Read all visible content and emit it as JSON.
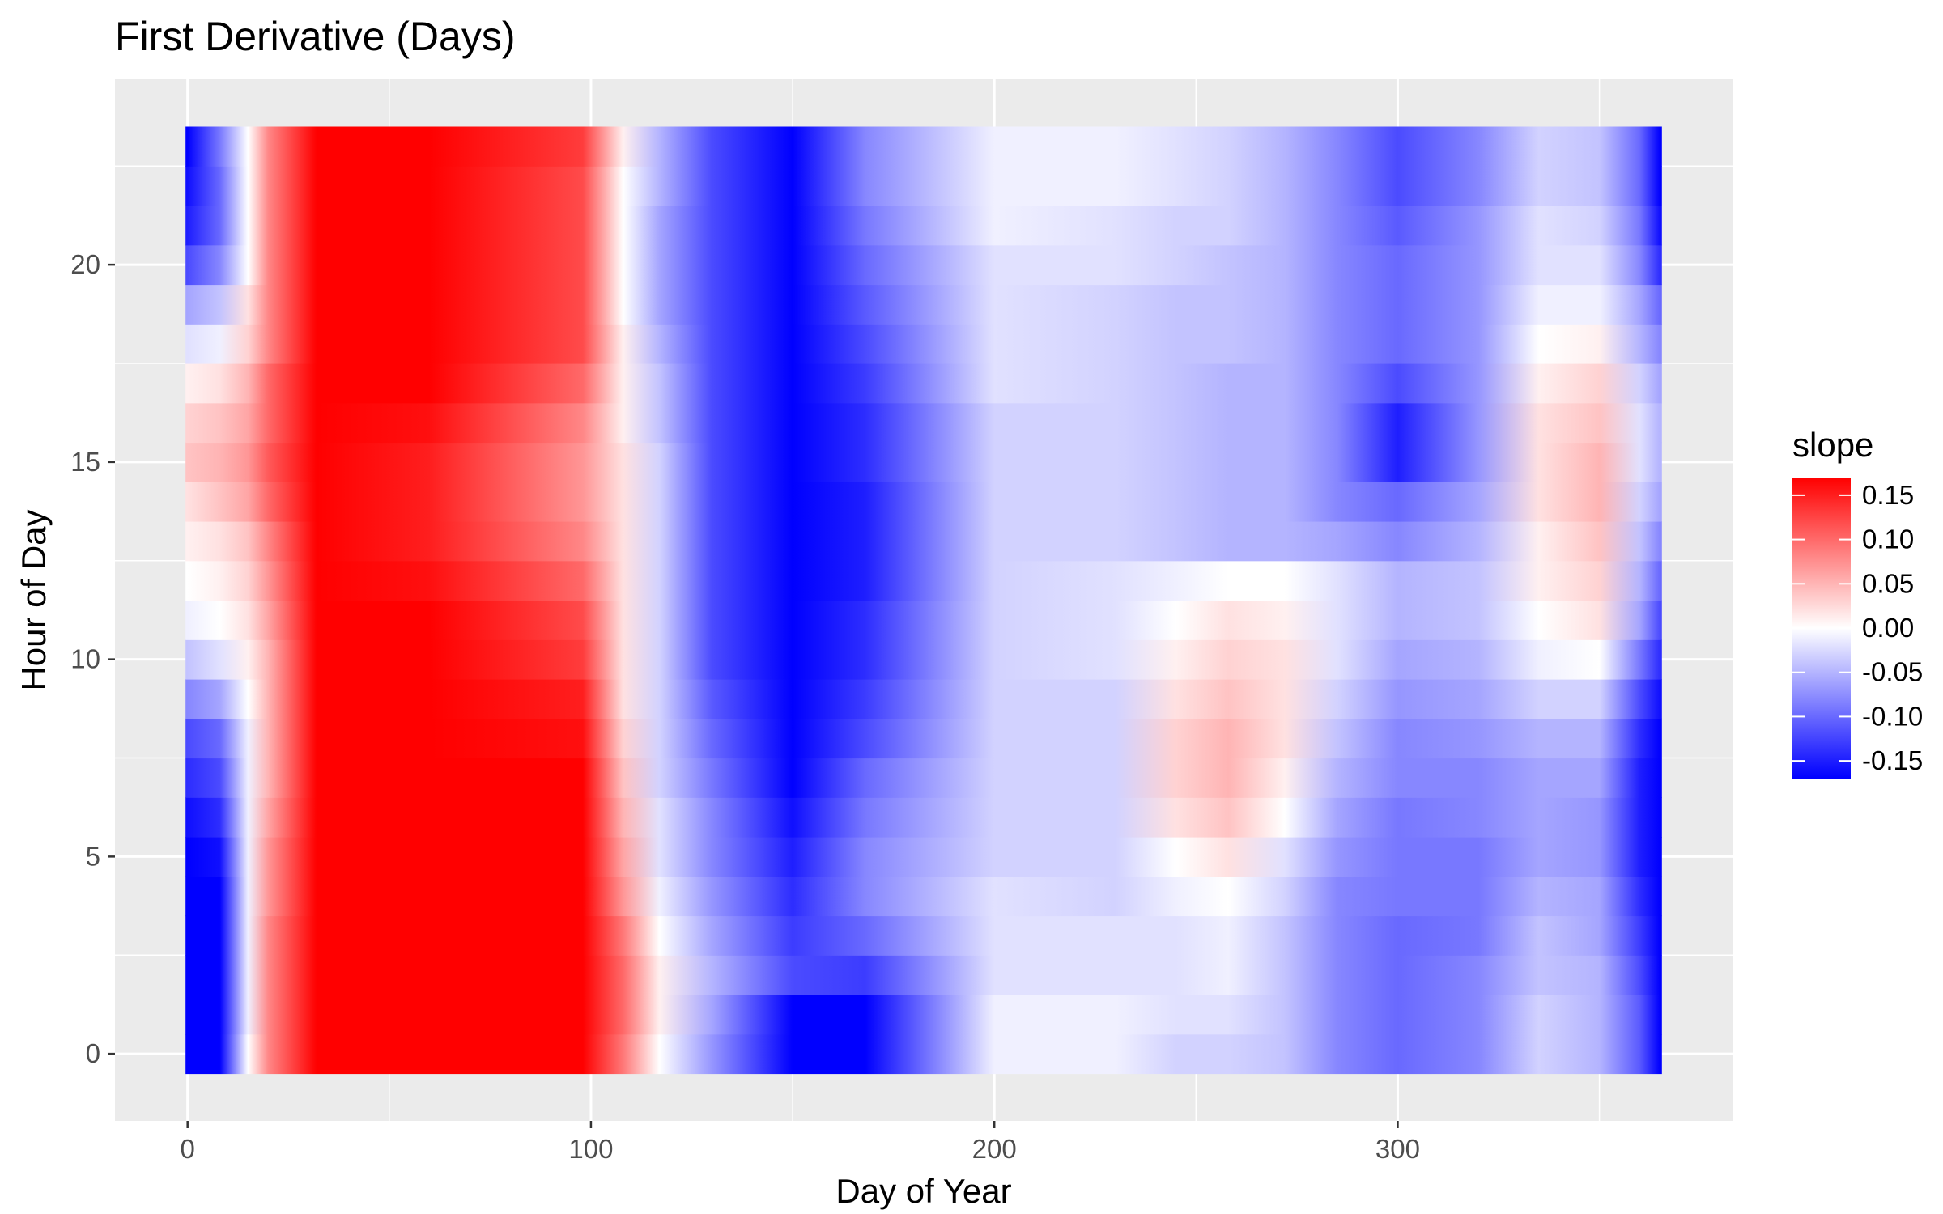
{
  "chart_data": {
    "type": "heatmap",
    "title": "First Derivative (Days)",
    "xlabel": "Day of Year",
    "ylabel": "Hour of Day",
    "xlim": [
      -0.5,
      365.5
    ],
    "ylim": [
      -0.5,
      23.5
    ],
    "x_view": [
      -18,
      383
    ],
    "y_view": [
      -1.7,
      24.7
    ],
    "x_ticks": [
      0,
      100,
      200,
      300
    ],
    "x_tick_labels": [
      "0",
      "100",
      "200",
      "300"
    ],
    "y_ticks": [
      0,
      5,
      10,
      15,
      20
    ],
    "y_tick_labels": [
      "0",
      "5",
      "10",
      "15",
      "20"
    ],
    "grid": true,
    "panel_background": "#ebebeb",
    "legend": {
      "title": "slope",
      "placement": "right",
      "limits": [
        -0.17,
        0.17
      ],
      "breaks": [
        0.15,
        0.1,
        0.05,
        0.0,
        -0.05,
        -0.1,
        -0.15
      ],
      "break_labels": [
        "0.15",
        "0.10",
        "0.05",
        "0.00",
        "-0.05",
        "-0.10",
        "-0.15"
      ]
    },
    "colors": {
      "low": "#0000ff",
      "mid": "#ffffff",
      "high": "#ff0000"
    },
    "day_knots": [
      0,
      8,
      15,
      20,
      32,
      60,
      98,
      108,
      117,
      130,
      150,
      168,
      200,
      230,
      245,
      258,
      272,
      285,
      300,
      320,
      335,
      350,
      360,
      365
    ],
    "hour_slope_profiles": [
      {
        "hour": 0,
        "slopes": [
          -0.17,
          -0.17,
          0.0,
          0.08,
          0.17,
          0.17,
          0.17,
          0.09,
          0.0,
          -0.07,
          -0.17,
          -0.17,
          -0.01,
          -0.01,
          -0.03,
          -0.03,
          -0.04,
          -0.08,
          -0.1,
          -0.08,
          -0.03,
          -0.05,
          -0.11,
          -0.17
        ]
      },
      {
        "hour": 1,
        "slopes": [
          -0.17,
          -0.17,
          -0.01,
          0.08,
          0.17,
          0.17,
          0.17,
          0.1,
          0.01,
          -0.06,
          -0.17,
          -0.17,
          -0.01,
          -0.01,
          -0.02,
          -0.02,
          -0.04,
          -0.08,
          -0.1,
          -0.08,
          -0.03,
          -0.05,
          -0.11,
          -0.17
        ]
      },
      {
        "hour": 2,
        "slopes": [
          -0.17,
          -0.17,
          -0.01,
          0.08,
          0.17,
          0.17,
          0.17,
          0.1,
          0.01,
          -0.05,
          -0.12,
          -0.13,
          -0.02,
          -0.02,
          -0.02,
          -0.01,
          -0.04,
          -0.08,
          -0.1,
          -0.08,
          -0.04,
          -0.05,
          -0.12,
          -0.17
        ]
      },
      {
        "hour": 3,
        "slopes": [
          -0.17,
          -0.17,
          -0.01,
          0.08,
          0.17,
          0.17,
          0.17,
          0.09,
          0.0,
          -0.06,
          -0.13,
          -0.1,
          -0.02,
          -0.02,
          -0.02,
          -0.01,
          -0.04,
          -0.08,
          -0.1,
          -0.09,
          -0.04,
          -0.06,
          -0.13,
          -0.17
        ]
      },
      {
        "hour": 4,
        "slopes": [
          -0.17,
          -0.17,
          -0.01,
          0.07,
          0.17,
          0.17,
          0.17,
          0.07,
          -0.01,
          -0.07,
          -0.14,
          -0.08,
          -0.02,
          -0.03,
          -0.01,
          0.0,
          -0.03,
          -0.08,
          -0.09,
          -0.09,
          -0.05,
          -0.06,
          -0.14,
          -0.17
        ]
      },
      {
        "hour": 5,
        "slopes": [
          -0.17,
          -0.16,
          -0.01,
          0.07,
          0.17,
          0.17,
          0.17,
          0.06,
          -0.02,
          -0.08,
          -0.15,
          -0.08,
          -0.03,
          -0.03,
          0.0,
          0.02,
          -0.02,
          -0.07,
          -0.09,
          -0.09,
          -0.06,
          -0.07,
          -0.15,
          -0.17
        ]
      },
      {
        "hour": 6,
        "slopes": [
          -0.16,
          -0.14,
          -0.01,
          0.06,
          0.17,
          0.17,
          0.17,
          0.05,
          -0.02,
          -0.08,
          -0.16,
          -0.09,
          -0.03,
          -0.03,
          0.02,
          0.04,
          0.0,
          -0.06,
          -0.09,
          -0.08,
          -0.06,
          -0.07,
          -0.15,
          -0.17
        ]
      },
      {
        "hour": 7,
        "slopes": [
          -0.14,
          -0.12,
          -0.01,
          0.05,
          0.17,
          0.17,
          0.17,
          0.04,
          -0.03,
          -0.09,
          -0.17,
          -0.1,
          -0.03,
          -0.03,
          0.03,
          0.05,
          0.01,
          -0.05,
          -0.08,
          -0.08,
          -0.06,
          -0.06,
          -0.15,
          -0.17
        ]
      },
      {
        "hour": 8,
        "slopes": [
          -0.12,
          -0.1,
          -0.01,
          0.05,
          0.17,
          0.17,
          0.16,
          0.03,
          -0.03,
          -0.1,
          -0.17,
          -0.12,
          -0.03,
          -0.03,
          0.03,
          0.05,
          0.02,
          -0.04,
          -0.08,
          -0.07,
          -0.05,
          -0.05,
          -0.14,
          -0.17
        ]
      },
      {
        "hour": 9,
        "slopes": [
          -0.08,
          -0.06,
          0.0,
          0.05,
          0.17,
          0.17,
          0.15,
          0.02,
          -0.03,
          -0.11,
          -0.17,
          -0.13,
          -0.03,
          -0.03,
          0.02,
          0.04,
          0.02,
          -0.03,
          -0.07,
          -0.06,
          -0.03,
          -0.03,
          -0.12,
          -0.16
        ]
      },
      {
        "hour": 10,
        "slopes": [
          -0.04,
          -0.02,
          0.01,
          0.05,
          0.17,
          0.17,
          0.13,
          0.02,
          -0.03,
          -0.12,
          -0.17,
          -0.14,
          -0.03,
          -0.02,
          0.01,
          0.03,
          0.02,
          -0.02,
          -0.06,
          -0.05,
          -0.01,
          0.0,
          -0.09,
          -0.14
        ]
      },
      {
        "hour": 11,
        "slopes": [
          -0.01,
          0.0,
          0.02,
          0.06,
          0.17,
          0.17,
          0.12,
          0.02,
          -0.03,
          -0.12,
          -0.17,
          -0.14,
          -0.03,
          -0.02,
          0.0,
          0.02,
          0.01,
          -0.02,
          -0.05,
          -0.04,
          0.0,
          0.02,
          -0.06,
          -0.12
        ]
      },
      {
        "hour": 12,
        "slopes": [
          0.0,
          0.01,
          0.03,
          0.07,
          0.17,
          0.16,
          0.1,
          0.02,
          -0.03,
          -0.12,
          -0.17,
          -0.15,
          -0.03,
          -0.02,
          -0.01,
          0.0,
          0.0,
          -0.02,
          -0.05,
          -0.04,
          0.01,
          0.03,
          -0.05,
          -0.1
        ]
      },
      {
        "hour": 13,
        "slopes": [
          0.01,
          0.02,
          0.04,
          0.08,
          0.17,
          0.15,
          0.08,
          0.02,
          -0.03,
          -0.12,
          -0.17,
          -0.15,
          -0.03,
          -0.03,
          -0.04,
          -0.05,
          -0.05,
          -0.06,
          -0.08,
          -0.05,
          0.01,
          0.04,
          -0.04,
          -0.08
        ]
      },
      {
        "hour": 14,
        "slopes": [
          0.02,
          0.04,
          0.06,
          0.1,
          0.17,
          0.15,
          0.07,
          0.02,
          -0.03,
          -0.12,
          -0.17,
          -0.15,
          -0.03,
          -0.03,
          -0.04,
          -0.05,
          -0.05,
          -0.08,
          -0.1,
          -0.06,
          0.02,
          0.05,
          -0.03,
          -0.06
        ]
      },
      {
        "hour": 15,
        "slopes": [
          0.04,
          0.05,
          0.07,
          0.11,
          0.17,
          0.15,
          0.07,
          0.02,
          -0.03,
          -0.12,
          -0.17,
          -0.14,
          -0.03,
          -0.03,
          -0.04,
          -0.05,
          -0.05,
          -0.08,
          -0.15,
          -0.07,
          0.02,
          0.05,
          -0.02,
          -0.05
        ]
      },
      {
        "hour": 16,
        "slopes": [
          0.03,
          0.04,
          0.06,
          0.1,
          0.17,
          0.16,
          0.08,
          0.01,
          -0.04,
          -0.12,
          -0.17,
          -0.14,
          -0.03,
          -0.03,
          -0.04,
          -0.05,
          -0.05,
          -0.08,
          -0.15,
          -0.07,
          0.02,
          0.04,
          -0.02,
          -0.05
        ]
      },
      {
        "hour": 17,
        "slopes": [
          0.01,
          0.02,
          0.05,
          0.1,
          0.17,
          0.17,
          0.1,
          0.01,
          -0.04,
          -0.12,
          -0.17,
          -0.13,
          -0.02,
          -0.03,
          -0.04,
          -0.05,
          -0.05,
          -0.08,
          -0.12,
          -0.07,
          0.01,
          0.03,
          -0.03,
          -0.06
        ]
      },
      {
        "hour": 18,
        "slopes": [
          -0.02,
          -0.01,
          0.03,
          0.08,
          0.17,
          0.17,
          0.12,
          0.01,
          -0.05,
          -0.12,
          -0.17,
          -0.12,
          -0.02,
          -0.03,
          -0.04,
          -0.04,
          -0.05,
          -0.08,
          -0.1,
          -0.07,
          0.0,
          0.01,
          -0.05,
          -0.08
        ]
      },
      {
        "hour": 19,
        "slopes": [
          -0.06,
          -0.04,
          0.02,
          0.08,
          0.17,
          0.17,
          0.12,
          0.0,
          -0.06,
          -0.12,
          -0.17,
          -0.11,
          -0.02,
          -0.03,
          -0.04,
          -0.04,
          -0.05,
          -0.08,
          -0.1,
          -0.07,
          -0.01,
          -0.01,
          -0.06,
          -0.1
        ]
      },
      {
        "hour": 20,
        "slopes": [
          -0.12,
          -0.08,
          0.0,
          0.08,
          0.17,
          0.17,
          0.12,
          0.0,
          -0.06,
          -0.12,
          -0.17,
          -0.1,
          -0.02,
          -0.02,
          -0.03,
          -0.04,
          -0.05,
          -0.08,
          -0.1,
          -0.07,
          -0.02,
          -0.02,
          -0.08,
          -0.14
        ]
      },
      {
        "hour": 21,
        "slopes": [
          -0.15,
          -0.1,
          0.0,
          0.08,
          0.17,
          0.17,
          0.12,
          0.0,
          -0.06,
          -0.12,
          -0.17,
          -0.09,
          -0.01,
          -0.02,
          -0.03,
          -0.03,
          -0.05,
          -0.08,
          -0.11,
          -0.07,
          -0.02,
          -0.03,
          -0.09,
          -0.16
        ]
      },
      {
        "hour": 22,
        "slopes": [
          -0.16,
          -0.1,
          0.0,
          0.08,
          0.17,
          0.17,
          0.12,
          0.0,
          -0.05,
          -0.12,
          -0.17,
          -0.08,
          -0.01,
          -0.01,
          -0.02,
          -0.03,
          -0.05,
          -0.08,
          -0.12,
          -0.08,
          -0.03,
          -0.04,
          -0.1,
          -0.17
        ]
      },
      {
        "hour": 23,
        "slopes": [
          -0.17,
          -0.09,
          0.0,
          0.08,
          0.17,
          0.17,
          0.13,
          0.01,
          -0.05,
          -0.12,
          -0.17,
          -0.08,
          -0.01,
          -0.01,
          -0.02,
          -0.03,
          -0.05,
          -0.08,
          -0.12,
          -0.08,
          -0.03,
          -0.04,
          -0.1,
          -0.17
        ]
      }
    ]
  }
}
